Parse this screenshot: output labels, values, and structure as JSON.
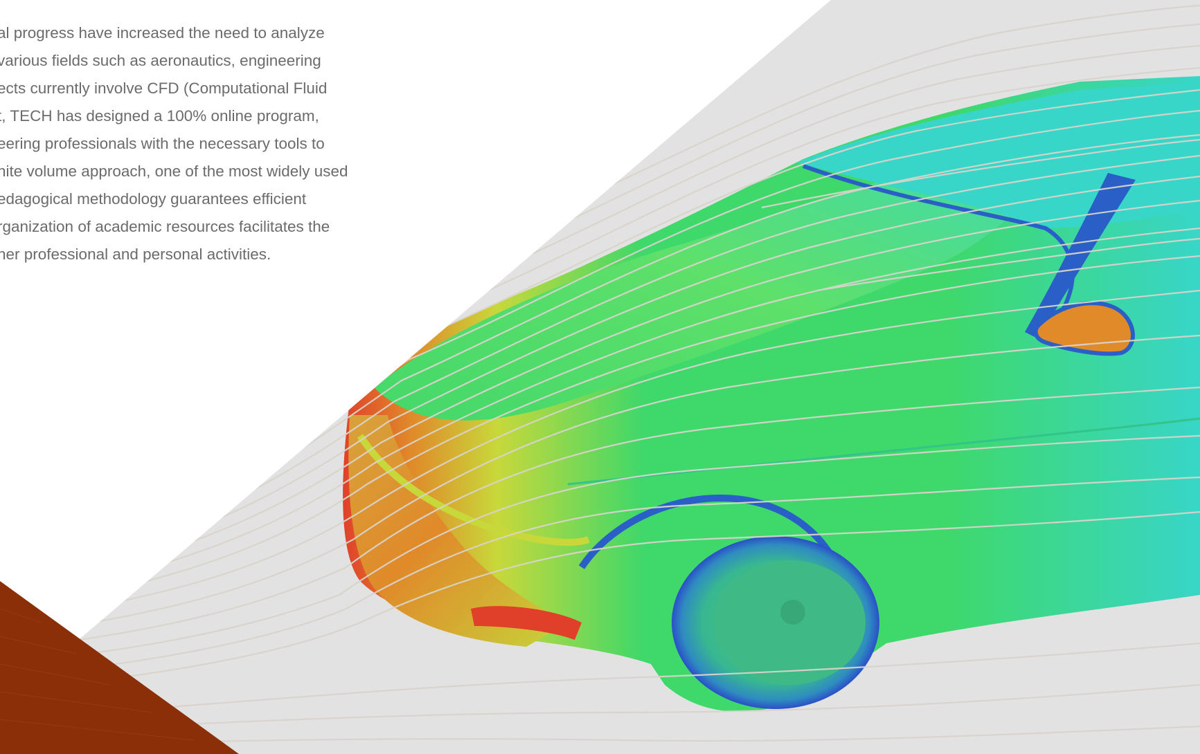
{
  "intro": {
    "lines": [
      "al progress have increased the need to analyze",
      "various fields such as aeronautics, engineering",
      "ects currently involve CFD (Computational Fluid",
      "t, TECH has designed a 100% online program,",
      "eering professionals with the necessary tools to",
      "nite volume approach, one of the most widely used",
      "edagogical methodology guarantees efficient",
      "rganization of academic resources facilitates the",
      "her professional and personal activities."
    ]
  },
  "hero": {
    "image_subject": "car-cfd-airflow-simulation",
    "colors": {
      "panel_background": "#e2e2e2",
      "accent_brown": "#8a2f08",
      "body_green": "#3fd86a",
      "body_cyan": "#38d6c8",
      "body_blue": "#2a5fc8",
      "body_yellow": "#c8d83a",
      "body_orange": "#e08a2a",
      "body_red": "#e0402a",
      "streamline": "#d8d4cc"
    }
  }
}
